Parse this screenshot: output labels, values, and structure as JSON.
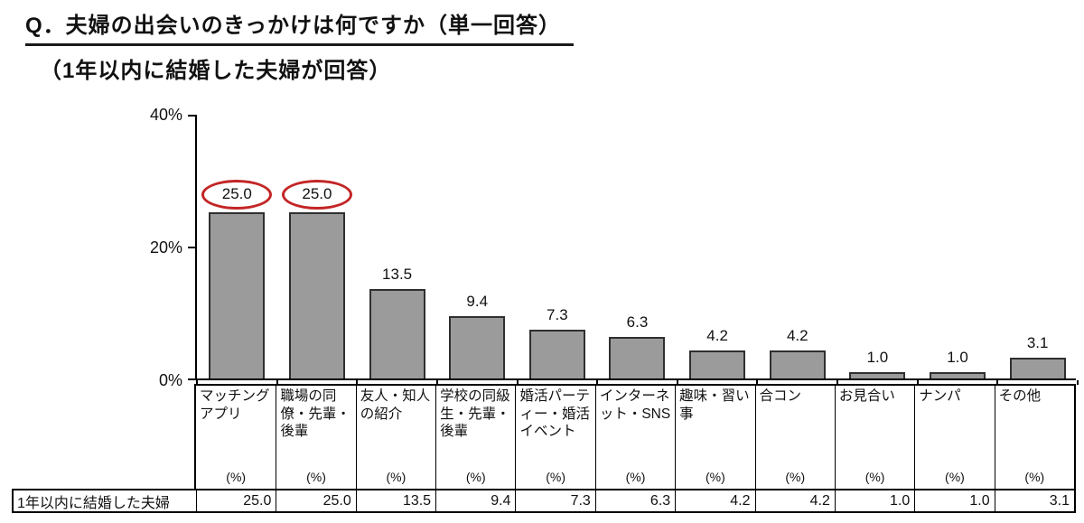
{
  "page": {
    "title": "Q．夫婦の出会いのきっかけは何ですか（単一回答）",
    "subtitle": "（1年以内に結婚した夫婦が回答）"
  },
  "chart_data": {
    "type": "bar",
    "title": "Q．夫婦の出会いのきっかけは何ですか（単一回答）",
    "subtitle": "（1年以内に結婚した夫婦が回答）",
    "categories": [
      "マッチングアプリ",
      "職場の同僚・先輩・後輩",
      "友人・知人の紹介",
      "学校の同級生・先輩・後輩",
      "婚活パーティー・婚活イベント",
      "インターネット・SNS",
      "趣味・習い事",
      "合コン",
      "お見合い",
      "ナンパ",
      "その他"
    ],
    "series": [
      {
        "name": "1年以内に結婚した夫婦",
        "values": [
          25.0,
          25.0,
          13.5,
          9.4,
          7.3,
          6.3,
          4.2,
          4.2,
          1.0,
          1.0,
          3.1
        ]
      }
    ],
    "unit": "(%)",
    "ylim": [
      0,
      40
    ],
    "y_tick_labels": [
      "40%",
      "20%",
      "0%"
    ],
    "grid": false,
    "legend": false,
    "highlighted_indices": [
      0,
      1
    ],
    "colors": {
      "bar_fill": "#9b9b9b",
      "bar_border": "#2f2f2f",
      "highlight_ring": "#c32525"
    }
  },
  "table": {
    "header_unit": "(%)",
    "row_label": "1年以内に結婚した夫婦",
    "values": [
      "25.0",
      "25.0",
      "13.5",
      "9.4",
      "7.3",
      "6.3",
      "4.2",
      "4.2",
      "1.0",
      "1.0",
      "3.1"
    ]
  }
}
